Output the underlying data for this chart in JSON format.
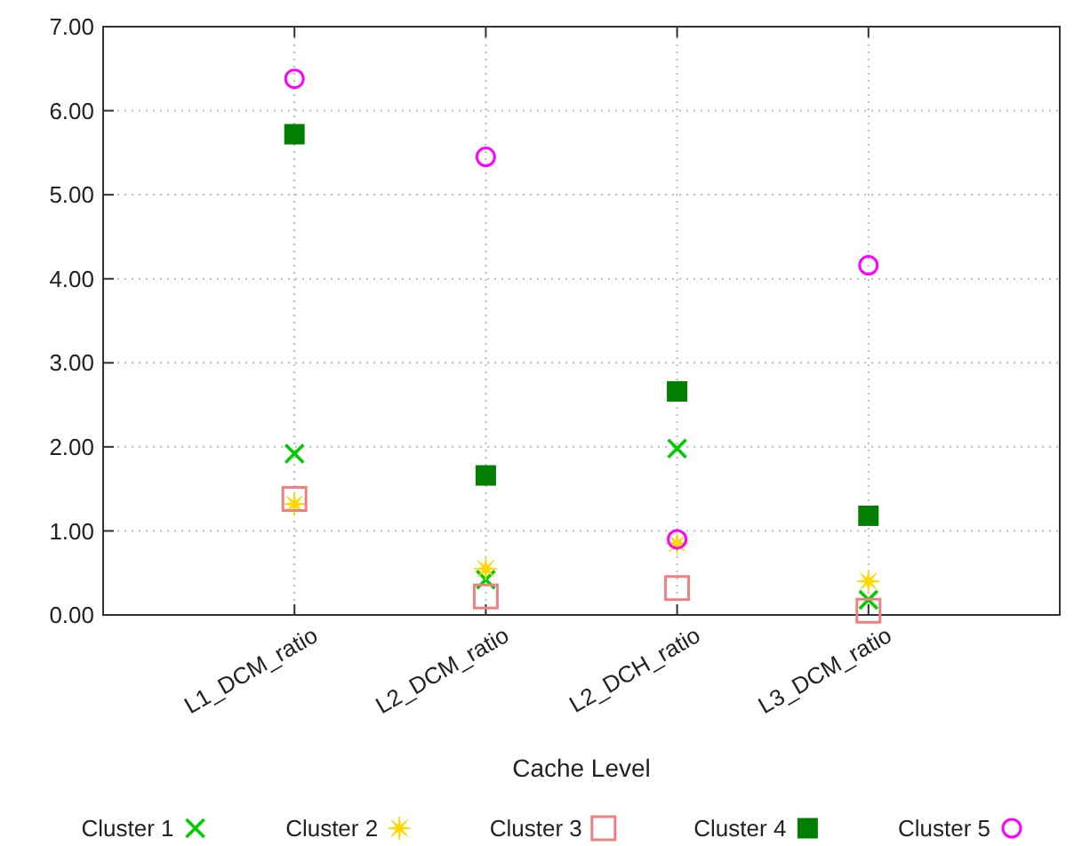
{
  "chart_data": {
    "type": "scatter",
    "xlabel": "Cache Level",
    "categories": [
      "L1_DCM_ratio",
      "L2_DCM_ratio",
      "L2_DCH_ratio",
      "L3_DCM_ratio"
    ],
    "ylim": [
      0,
      7
    ],
    "yticks": [
      {
        "value": 0,
        "label": "0.00"
      },
      {
        "value": 1,
        "label": "1.00"
      },
      {
        "value": 2,
        "label": "2.00"
      },
      {
        "value": 3,
        "label": "3.00"
      },
      {
        "value": 4,
        "label": "4.00"
      },
      {
        "value": 5,
        "label": "5.00"
      },
      {
        "value": 6,
        "label": "6.00"
      },
      {
        "value": 7,
        "label": "7.00"
      }
    ],
    "grid": true,
    "legend": "bottom",
    "series": [
      {
        "name": "Cluster 1",
        "color": "#00cc00",
        "marker": "cross",
        "values": [
          1.92,
          0.42,
          1.98,
          0.18
        ]
      },
      {
        "name": "Cluster 2",
        "color": "#ffd700",
        "marker": "star",
        "values": [
          1.32,
          0.55,
          0.85,
          0.4
        ]
      },
      {
        "name": "Cluster 3",
        "color": "#f08080",
        "marker": "square",
        "values": [
          1.38,
          0.22,
          0.32,
          0.05
        ]
      },
      {
        "name": "Cluster 4",
        "color": "#007f00",
        "marker": "square",
        "values": [
          5.72,
          1.66,
          2.66,
          1.18
        ]
      },
      {
        "name": "Cluster 5",
        "color": "#ff00ff",
        "marker": "circle",
        "values": [
          6.38,
          5.45,
          0.9,
          4.16
        ]
      }
    ]
  }
}
